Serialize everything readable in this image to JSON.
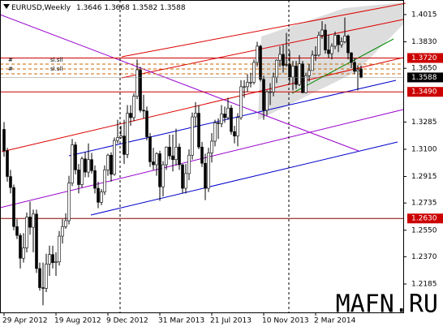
{
  "chart_data": {
    "type": "candlestick",
    "title": "EURUSD,Weekly",
    "watermark": "MAFN.RU",
    "annotations": [
      "#",
      "sl.sll",
      "#",
      "sl.sll"
    ],
    "categories": [
      "29 Apr 2012",
      null,
      null,
      null,
      null,
      null,
      null,
      null,
      null,
      null,
      null,
      null,
      null,
      null,
      null,
      null,
      "19 Aug 2012",
      null,
      null,
      null,
      null,
      null,
      null,
      null,
      null,
      null,
      null,
      null,
      null,
      null,
      null,
      null,
      "9 Dec 2012",
      null,
      null,
      null,
      null,
      null,
      null,
      null,
      null,
      null,
      null,
      null,
      null,
      null,
      null,
      null,
      "31 Mar 2013",
      null,
      null,
      null,
      null,
      null,
      null,
      null,
      null,
      null,
      null,
      null,
      null,
      null,
      null,
      null,
      "21 Jul 2013",
      null,
      null,
      null,
      null,
      null,
      null,
      null,
      null,
      null,
      null,
      null,
      null,
      null,
      null,
      null,
      "10 Nov 2013",
      null,
      null,
      null,
      null,
      null,
      null,
      null,
      null,
      null,
      null,
      null,
      null,
      null,
      null,
      null,
      "2 Mar 2014",
      null,
      null,
      null,
      null,
      null,
      null,
      null,
      null,
      null,
      null,
      null,
      null,
      null,
      null
    ],
    "open": [
      1.3235,
      1.309,
      1.2915,
      1.284,
      1.2575,
      1.2515,
      1.236,
      1.243,
      1.264,
      1.257,
      1.266,
      1.229,
      1.216,
      1.2155,
      1.232,
      1.2385,
      1.233,
      1.2335,
      1.251,
      1.2575,
      1.2615,
      1.287,
      1.313,
      1.296,
      1.286,
      1.3035,
      1.2945,
      1.303,
      1.2955,
      1.2835,
      1.274,
      1.281,
      1.296,
      1.306,
      1.293,
      1.316,
      1.318,
      1.319,
      1.3065,
      1.3345,
      1.3315,
      1.346,
      1.364,
      1.3365,
      1.336,
      1.3185,
      1.3015,
      1.2995,
      1.307,
      1.2845,
      1.2995,
      1.3115,
      1.3055,
      1.303,
      1.3115,
      1.2995,
      1.2835,
      1.2935,
      1.306,
      1.332,
      1.3345,
      1.3115,
      1.3005,
      1.2835,
      1.3075,
      1.3155,
      1.328,
      1.3275,
      1.334,
      1.3315,
      1.338,
      1.322,
      1.319,
      1.3315,
      1.3525,
      1.3525,
      1.3555,
      1.3555,
      1.369,
      1.38,
      1.3575,
      1.3365,
      1.349,
      1.349,
      1.359,
      1.3705,
      1.3745,
      1.367,
      1.3675,
      1.359,
      1.3665,
      1.354,
      1.368,
      1.3485,
      1.36,
      1.3635,
      1.374,
      1.374,
      1.3875,
      1.391,
      1.3775,
      1.375,
      1.38,
      1.3875,
      1.381,
      1.383,
      1.387,
      1.3755,
      1.369,
      1.363,
      1.3646
    ],
    "high": [
      1.3285,
      1.311,
      1.296,
      1.286,
      1.2625,
      1.253,
      1.253,
      1.267,
      1.2745,
      1.269,
      1.269,
      1.233,
      1.233,
      1.239,
      1.2445,
      1.2445,
      1.24,
      1.2545,
      1.2625,
      1.2665,
      1.292,
      1.317,
      1.315,
      1.3,
      1.305,
      1.308,
      1.314,
      1.3075,
      1.299,
      1.288,
      1.283,
      1.299,
      1.307,
      1.308,
      1.318,
      1.33,
      1.326,
      1.33,
      1.34,
      1.34,
      1.348,
      1.371,
      1.366,
      1.347,
      1.339,
      1.321,
      1.311,
      1.308,
      1.309,
      1.302,
      1.312,
      1.32,
      1.32,
      1.324,
      1.314,
      1.3,
      1.3,
      1.31,
      1.335,
      1.342,
      1.34,
      1.315,
      1.307,
      1.311,
      1.321,
      1.33,
      1.331,
      1.34,
      1.339,
      1.345,
      1.34,
      1.326,
      1.3345,
      1.357,
      1.357,
      1.361,
      1.362,
      1.371,
      1.383,
      1.381,
      1.36,
      1.35,
      1.355,
      1.362,
      1.371,
      1.38,
      1.381,
      1.389,
      1.377,
      1.37,
      1.37,
      1.374,
      1.37,
      1.362,
      1.368,
      1.377,
      1.38,
      1.39,
      1.397,
      1.395,
      1.388,
      1.382,
      1.39,
      1.388,
      1.386,
      1.3995,
      1.388,
      1.376,
      1.372,
      1.367,
      1.3668
    ],
    "low": [
      1.305,
      1.288,
      1.28,
      1.255,
      1.249,
      1.229,
      1.233,
      1.24,
      1.252,
      1.24,
      1.226,
      1.214,
      1.204,
      1.213,
      1.224,
      1.229,
      1.224,
      1.231,
      1.246,
      1.256,
      1.259,
      1.285,
      1.293,
      1.28,
      1.284,
      1.291,
      1.291,
      1.2935,
      1.28,
      1.27,
      1.272,
      1.279,
      1.292,
      1.288,
      1.292,
      1.314,
      1.317,
      1.3,
      1.304,
      1.326,
      1.329,
      1.344,
      1.335,
      1.331,
      1.316,
      1.298,
      1.296,
      1.292,
      1.275,
      1.278,
      1.296,
      1.303,
      1.295,
      1.299,
      1.296,
      1.28,
      1.28,
      1.289,
      1.303,
      1.325,
      1.31,
      1.298,
      1.2755,
      1.281,
      1.301,
      1.312,
      1.317,
      1.325,
      1.328,
      1.33,
      1.32,
      1.314,
      1.312,
      1.33,
      1.345,
      1.349,
      1.352,
      1.354,
      1.366,
      1.356,
      1.33,
      1.333,
      1.34,
      1.346,
      1.355,
      1.366,
      1.362,
      1.366,
      1.355,
      1.35,
      1.351,
      1.353,
      1.348,
      1.348,
      1.356,
      1.364,
      1.37,
      1.373,
      1.385,
      1.375,
      1.372,
      1.371,
      1.378,
      1.376,
      1.379,
      1.382,
      1.371,
      1.365,
      1.361,
      1.35,
      1.3582
    ],
    "close": [
      1.309,
      1.2915,
      1.284,
      1.2575,
      1.2515,
      1.236,
      1.243,
      1.264,
      1.257,
      1.266,
      1.229,
      1.216,
      1.2155,
      1.232,
      1.2385,
      1.233,
      1.2335,
      1.251,
      1.2575,
      1.2615,
      1.287,
      1.313,
      1.296,
      1.286,
      1.3035,
      1.2945,
      1.303,
      1.2955,
      1.2835,
      1.274,
      1.281,
      1.296,
      1.306,
      1.293,
      1.316,
      1.318,
      1.319,
      1.3065,
      1.3345,
      1.3315,
      1.346,
      1.364,
      1.3365,
      1.336,
      1.3185,
      1.3015,
      1.2995,
      1.307,
      1.2845,
      1.2995,
      1.3115,
      1.3055,
      1.303,
      1.3115,
      1.2995,
      1.2835,
      1.2935,
      1.306,
      1.332,
      1.3345,
      1.3115,
      1.3005,
      1.2835,
      1.3075,
      1.3155,
      1.328,
      1.3275,
      1.334,
      1.3315,
      1.338,
      1.322,
      1.319,
      1.3315,
      1.3525,
      1.3525,
      1.3555,
      1.3555,
      1.369,
      1.38,
      1.3575,
      1.3365,
      1.349,
      1.349,
      1.359,
      1.3705,
      1.3745,
      1.367,
      1.3675,
      1.359,
      1.3665,
      1.354,
      1.368,
      1.3485,
      1.36,
      1.3635,
      1.374,
      1.374,
      1.3875,
      1.391,
      1.3775,
      1.375,
      1.38,
      1.3875,
      1.381,
      1.383,
      1.387,
      1.3755,
      1.369,
      1.363,
      1.364,
      1.3588
    ],
    "ylim": [
      1.1992,
      1.4114
    ],
    "yticks": [
      {
        "value": 1.4015,
        "label": "1.4015"
      },
      {
        "value": 1.383,
        "label": "1.3830"
      },
      {
        "value": 1.365,
        "label": "1.3650"
      },
      {
        "value": 1.3285,
        "label": "1.3285"
      },
      {
        "value": 1.31,
        "label": "1.3100"
      },
      {
        "value": 1.2915,
        "label": "1.2915"
      },
      {
        "value": 1.2735,
        "label": "1.2735"
      },
      {
        "value": 1.255,
        "label": "1.2550"
      },
      {
        "value": 1.237,
        "label": "1.2370"
      },
      {
        "value": 1.2185,
        "label": "1.2185"
      }
    ],
    "levels": [
      {
        "value": 1.372,
        "label": "1.3720"
      },
      {
        "value": 1.349,
        "label": "1.3490"
      },
      {
        "value": 1.263,
        "label": "1.2630"
      }
    ]
  }
}
